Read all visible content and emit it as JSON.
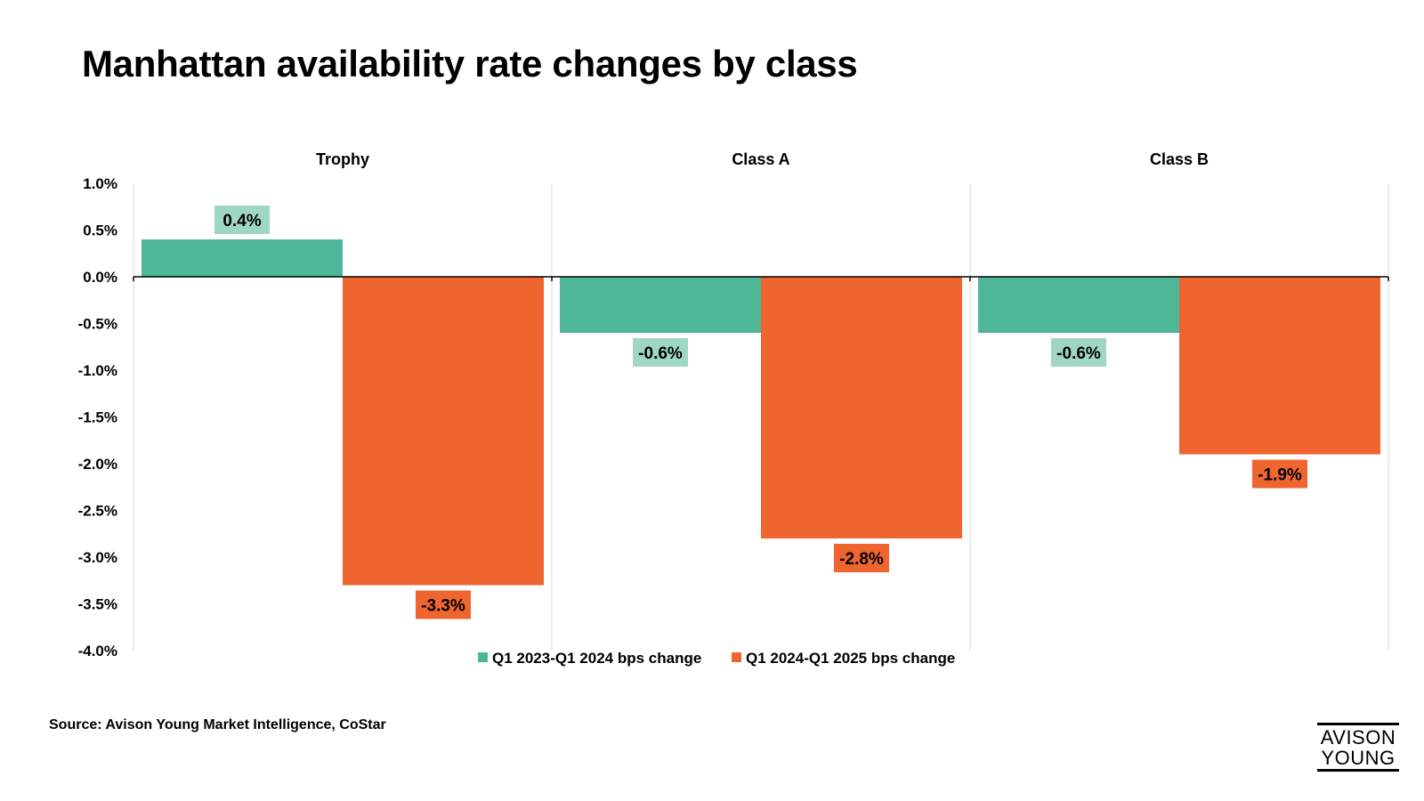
{
  "title": "Manhattan availability rate changes by class",
  "source": "Source: Avison Young Market Intelligence, CoStar",
  "logo": {
    "line1": "AVISON",
    "line2": "YOUNG"
  },
  "colors": {
    "series1": "#4db797",
    "series2": "#ef6530",
    "label1_bg": "#9fd7c3",
    "label2_bg": "#ef6530",
    "grid": "#d9d9d9",
    "zero": "#000000"
  },
  "chart_data": {
    "type": "bar",
    "categories": [
      "Trophy",
      "Class A",
      "Class B"
    ],
    "series": [
      {
        "name": "Q1 2023-Q1 2024 bps change",
        "values": [
          0.4,
          -0.6,
          -0.6
        ],
        "labels": [
          "0.4%",
          "-0.6%",
          "-0.6%"
        ]
      },
      {
        "name": "Q1 2024-Q1 2025 bps change",
        "values": [
          -3.3,
          -2.8,
          -1.9
        ],
        "labels": [
          "-3.3%",
          "-2.8%",
          "-1.9%"
        ]
      }
    ],
    "ylim": [
      -4.0,
      1.0
    ],
    "yticks": [
      1.0,
      0.5,
      0.0,
      -0.5,
      -1.0,
      -1.5,
      -2.0,
      -2.5,
      -3.0,
      -3.5,
      -4.0
    ],
    "ytick_labels": [
      "1.0%",
      "0.5%",
      "0.0%",
      "-0.5%",
      "-1.0%",
      "-1.5%",
      "-2.0%",
      "-2.5%",
      "-3.0%",
      "-3.5%",
      "-4.0%"
    ],
    "legend_position": "bottom",
    "grid": "vertical panel separators"
  }
}
